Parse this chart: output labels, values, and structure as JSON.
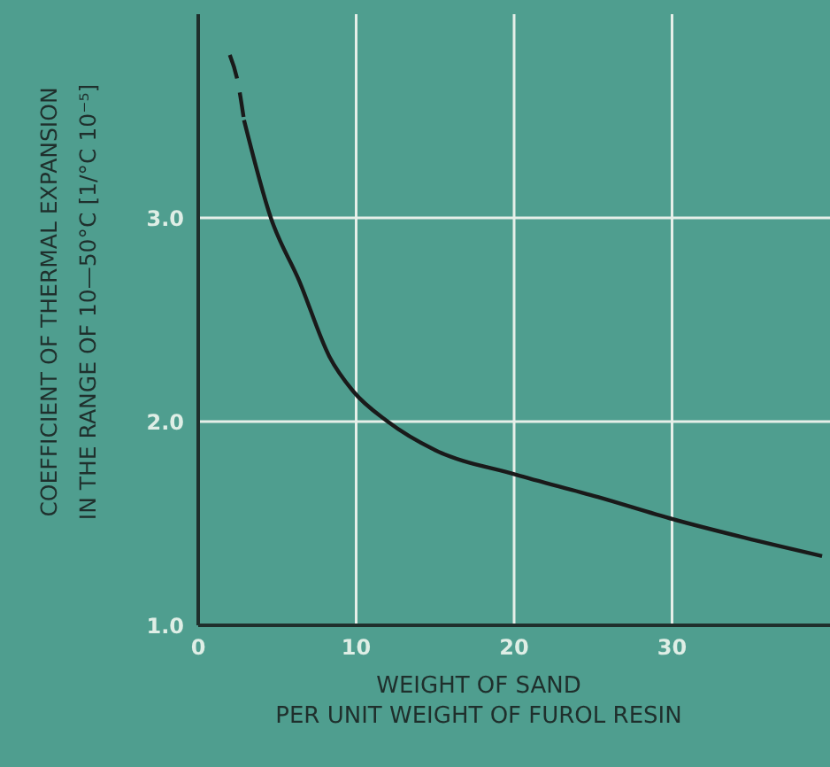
{
  "chart_data": {
    "type": "line",
    "xlabel": "WEIGHT OF SAND\nPER UNIT WEIGHT OF FUROL RESIN",
    "ylabel": "COEFFICIENT OF THERMAL EXPANSION\nIN THE RANGE OF 10—50°C [1/°C 10⁻⁵]",
    "xlim": [
      0,
      40
    ],
    "xticks": [
      0,
      10,
      20,
      30
    ],
    "ylim": [
      1,
      4
    ],
    "yticks": [
      {
        "value": 1,
        "label": "1.0"
      },
      {
        "value": 2,
        "label": "2.0"
      },
      {
        "value": 3,
        "label": "3.0"
      }
    ],
    "grid": true,
    "series": [
      {
        "color": "#1a1a1a",
        "line_style": "dashed",
        "x": [
          2.0,
          2.5,
          2.9
        ],
        "values": [
          3.8,
          3.67,
          3.48
        ]
      },
      {
        "color": "#1a1a1a",
        "line_style": "solid",
        "x": [
          2.9,
          4.6,
          6.4,
          8.3,
          9.8,
          12,
          15,
          20.1,
          25.3,
          30.1,
          34.6,
          39.5
        ],
        "values": [
          3.48,
          3.0,
          2.69,
          2.32,
          2.15,
          2.0,
          1.86,
          1.74,
          1.63,
          1.52,
          1.43,
          1.34
        ]
      }
    ]
  }
}
